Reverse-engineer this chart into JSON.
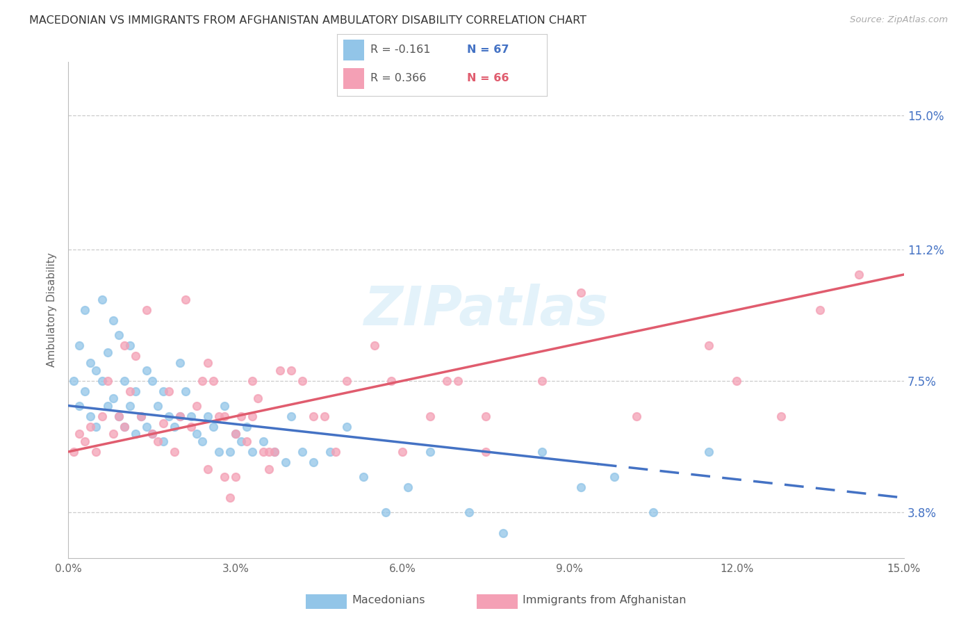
{
  "title": "MACEDONIAN VS IMMIGRANTS FROM AFGHANISTAN AMBULATORY DISABILITY CORRELATION CHART",
  "source": "Source: ZipAtlas.com",
  "ylabel": "Ambulatory Disability",
  "ytick_vals": [
    3.8,
    7.5,
    11.2,
    15.0
  ],
  "ytick_labels": [
    "3.8%",
    "7.5%",
    "11.2%",
    "15.0%"
  ],
  "xtick_vals": [
    0.0,
    3.0,
    6.0,
    9.0,
    12.0,
    15.0
  ],
  "xtick_labels": [
    "0.0%",
    "3.0%",
    "6.0%",
    "9.0%",
    "12.0%",
    "15.0%"
  ],
  "xlim": [
    0.0,
    15.0
  ],
  "ylim": [
    2.5,
    16.5
  ],
  "legend_r1": "R = -0.161",
  "legend_n1": "N = 67",
  "legend_r2": "R = 0.366",
  "legend_n2": "N = 66",
  "legend_label1": "Macedonians",
  "legend_label2": "Immigrants from Afghanistan",
  "blue_color": "#92c5e8",
  "pink_color": "#f4a0b5",
  "trend_blue": "#4472c4",
  "trend_pink": "#e05c6e",
  "watermark": "ZIPatlas",
  "blue_solid_end": 9.5,
  "mac_trend_start_y": 6.8,
  "mac_trend_end_y": 4.2,
  "afg_trend_start_y": 5.5,
  "afg_trend_end_y": 10.5,
  "macedonian_x": [
    0.1,
    0.2,
    0.2,
    0.3,
    0.3,
    0.4,
    0.4,
    0.5,
    0.5,
    0.6,
    0.6,
    0.7,
    0.7,
    0.8,
    0.8,
    0.9,
    0.9,
    1.0,
    1.0,
    1.1,
    1.1,
    1.2,
    1.2,
    1.3,
    1.4,
    1.4,
    1.5,
    1.5,
    1.6,
    1.7,
    1.7,
    1.8,
    1.9,
    2.0,
    2.0,
    2.1,
    2.2,
    2.3,
    2.4,
    2.5,
    2.6,
    2.7,
    2.8,
    2.9,
    3.0,
    3.1,
    3.2,
    3.3,
    3.5,
    3.7,
    3.9,
    4.0,
    4.2,
    4.4,
    4.7,
    5.0,
    5.3,
    5.7,
    6.1,
    6.5,
    7.2,
    7.8,
    8.5,
    9.2,
    9.8,
    10.5,
    11.5
  ],
  "macedonian_y": [
    7.5,
    8.5,
    6.8,
    9.5,
    7.2,
    8.0,
    6.5,
    7.8,
    6.2,
    9.8,
    7.5,
    8.3,
    6.8,
    9.2,
    7.0,
    6.5,
    8.8,
    7.5,
    6.2,
    8.5,
    6.8,
    7.2,
    6.0,
    6.5,
    7.8,
    6.2,
    7.5,
    6.0,
    6.8,
    7.2,
    5.8,
    6.5,
    6.2,
    8.0,
    6.5,
    7.2,
    6.5,
    6.0,
    5.8,
    6.5,
    6.2,
    5.5,
    6.8,
    5.5,
    6.0,
    5.8,
    6.2,
    5.5,
    5.8,
    5.5,
    5.2,
    6.5,
    5.5,
    5.2,
    5.5,
    6.2,
    4.8,
    3.8,
    4.5,
    5.5,
    3.8,
    3.2,
    5.5,
    4.5,
    4.8,
    3.8,
    5.5
  ],
  "afghan_x": [
    0.1,
    0.2,
    0.3,
    0.4,
    0.5,
    0.6,
    0.7,
    0.8,
    0.9,
    1.0,
    1.0,
    1.1,
    1.2,
    1.3,
    1.4,
    1.5,
    1.6,
    1.7,
    1.8,
    1.9,
    2.0,
    2.1,
    2.2,
    2.3,
    2.4,
    2.5,
    2.6,
    2.7,
    2.8,
    2.9,
    3.0,
    3.1,
    3.2,
    3.3,
    3.4,
    3.5,
    3.6,
    3.7,
    3.8,
    4.0,
    4.2,
    4.4,
    4.6,
    5.0,
    5.5,
    6.0,
    6.5,
    7.0,
    7.5,
    8.5,
    9.2,
    10.2,
    11.5,
    12.0,
    12.8,
    13.5,
    14.2,
    4.8,
    5.8,
    6.8,
    7.5,
    3.3,
    3.6,
    2.5,
    3.0,
    2.8
  ],
  "afghan_y": [
    5.5,
    6.0,
    5.8,
    6.2,
    5.5,
    6.5,
    7.5,
    6.0,
    6.5,
    8.5,
    6.2,
    7.2,
    8.2,
    6.5,
    9.5,
    6.0,
    5.8,
    6.3,
    7.2,
    5.5,
    6.5,
    9.8,
    6.2,
    6.8,
    7.5,
    8.0,
    7.5,
    6.5,
    4.8,
    4.2,
    6.0,
    6.5,
    5.8,
    6.5,
    7.0,
    5.5,
    5.0,
    5.5,
    7.8,
    7.8,
    7.5,
    6.5,
    6.5,
    7.5,
    8.5,
    5.5,
    6.5,
    7.5,
    6.5,
    7.5,
    10.0,
    6.5,
    8.5,
    7.5,
    6.5,
    9.5,
    10.5,
    5.5,
    7.5,
    7.5,
    5.5,
    7.5,
    5.5,
    5.0,
    4.8,
    6.5
  ]
}
